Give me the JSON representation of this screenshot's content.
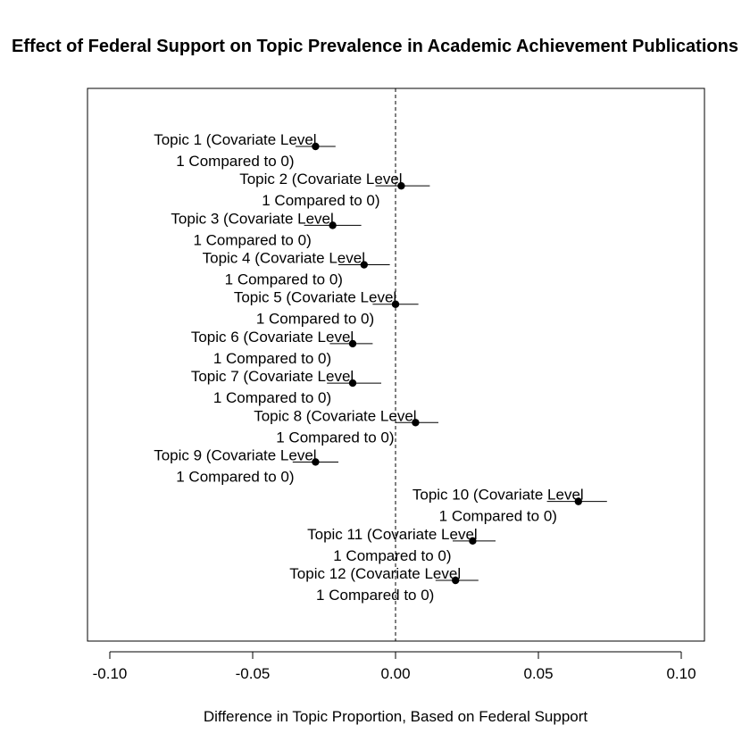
{
  "chart_data": {
    "type": "scatter",
    "title": "Effect of Federal Support on Topic Prevalence in Academic Achievement Publications",
    "xlabel": "Difference in Topic Proportion, Based on Federal Support",
    "ylabel": "",
    "xlim": [
      -0.108,
      0.108
    ],
    "xticks": [
      "-0.10",
      "-0.05",
      "0.00",
      "0.05",
      "0.10"
    ],
    "xtick_values": [
      -0.1,
      -0.05,
      0.0,
      0.05,
      0.1
    ],
    "reference_line": 0,
    "grid": false,
    "point_color": "#000000",
    "series": [
      {
        "label_line1": "Topic 1 (Covariate Level",
        "label_line2": "1 Compared to 0)",
        "estimate": -0.028,
        "lower": -0.035,
        "upper": -0.021
      },
      {
        "label_line1": "Topic 2 (Covariate Level",
        "label_line2": "1 Compared to 0)",
        "estimate": 0.002,
        "lower": -0.007,
        "upper": 0.012
      },
      {
        "label_line1": "Topic 3 (Covariate Level",
        "label_line2": "1 Compared to 0)",
        "estimate": -0.022,
        "lower": -0.032,
        "upper": -0.012
      },
      {
        "label_line1": "Topic 4 (Covariate Level",
        "label_line2": "1 Compared to 0)",
        "estimate": -0.011,
        "lower": -0.02,
        "upper": -0.002
      },
      {
        "label_line1": "Topic 5 (Covariate Level",
        "label_line2": "1 Compared to 0)",
        "estimate": 0.0,
        "lower": -0.008,
        "upper": 0.008
      },
      {
        "label_line1": "Topic 6 (Covariate Level",
        "label_line2": "1 Compared to 0)",
        "estimate": -0.015,
        "lower": -0.023,
        "upper": -0.008
      },
      {
        "label_line1": "Topic 7 (Covariate Level",
        "label_line2": "1 Compared to 0)",
        "estimate": -0.015,
        "lower": -0.024,
        "upper": -0.005
      },
      {
        "label_line1": "Topic 8 (Covariate Level",
        "label_line2": "1 Compared to 0)",
        "estimate": 0.007,
        "lower": 0.0,
        "upper": 0.015
      },
      {
        "label_line1": "Topic 9 (Covariate Level",
        "label_line2": "1 Compared to 0)",
        "estimate": -0.028,
        "lower": -0.036,
        "upper": -0.02
      },
      {
        "label_line1": "Topic 10 (Covariate Level",
        "label_line2": "1 Compared to 0)",
        "estimate": 0.064,
        "lower": 0.053,
        "upper": 0.074
      },
      {
        "label_line1": "Topic 11 (Covariate Level",
        "label_line2": "1 Compared to 0)",
        "estimate": 0.027,
        "lower": 0.02,
        "upper": 0.035
      },
      {
        "label_line1": "Topic 12 (Covariate Level",
        "label_line2": "1 Compared to 0)",
        "estimate": 0.021,
        "lower": 0.014,
        "upper": 0.029
      }
    ]
  }
}
